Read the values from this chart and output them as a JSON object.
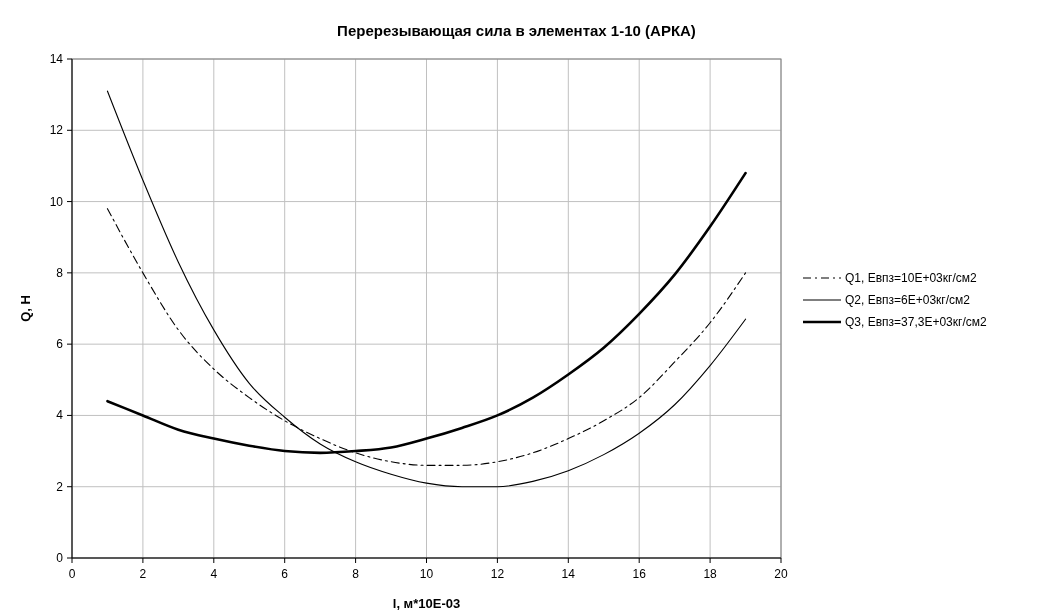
{
  "chart_data": {
    "type": "line",
    "title": "Перерезывающая сила в элементах 1-10 (АРКА)",
    "xlabel": "l, м*10E-03",
    "ylabel": "Q, Н",
    "x": [
      1,
      2,
      3,
      4,
      5,
      6,
      7,
      8,
      9,
      10,
      11,
      12,
      13,
      14,
      15,
      16,
      17,
      18,
      19
    ],
    "series": [
      {
        "name": "Q1, Евпз=10E+03кг/см2",
        "color": "#000000",
        "line_style": "dashed",
        "values": [
          9.8,
          8.0,
          6.4,
          5.3,
          4.5,
          3.85,
          3.35,
          2.95,
          2.7,
          2.6,
          2.6,
          2.7,
          2.95,
          3.35,
          3.85,
          4.5,
          5.5,
          6.6,
          8.0
        ]
      },
      {
        "name": "Q2, Евпз=6E+03кг/см2",
        "color": "#000000",
        "line_style": "solid",
        "values": [
          13.1,
          10.6,
          8.3,
          6.4,
          4.9,
          3.95,
          3.2,
          2.7,
          2.35,
          2.1,
          2.0,
          2.0,
          2.15,
          2.45,
          2.9,
          3.5,
          4.3,
          5.4,
          6.7
        ]
      },
      {
        "name": "Q3, Евпз=37,3E+03кг/см2",
        "color": "#000000",
        "line_style": "solid",
        "values": [
          4.4,
          4.0,
          3.6,
          3.35,
          3.15,
          3.0,
          2.95,
          3.0,
          3.1,
          3.35,
          3.65,
          4.0,
          4.5,
          5.15,
          5.9,
          6.85,
          7.95,
          9.3,
          10.8
        ]
      }
    ],
    "xlim": [
      0,
      20
    ],
    "xticks": [
      0,
      2,
      4,
      6,
      8,
      10,
      12,
      14,
      16,
      18,
      20
    ],
    "ylim": [
      0,
      14
    ],
    "yticks": [
      0,
      2,
      4,
      6,
      8,
      10,
      12,
      14
    ],
    "grid": true,
    "legend": "right",
    "marker": "none"
  }
}
